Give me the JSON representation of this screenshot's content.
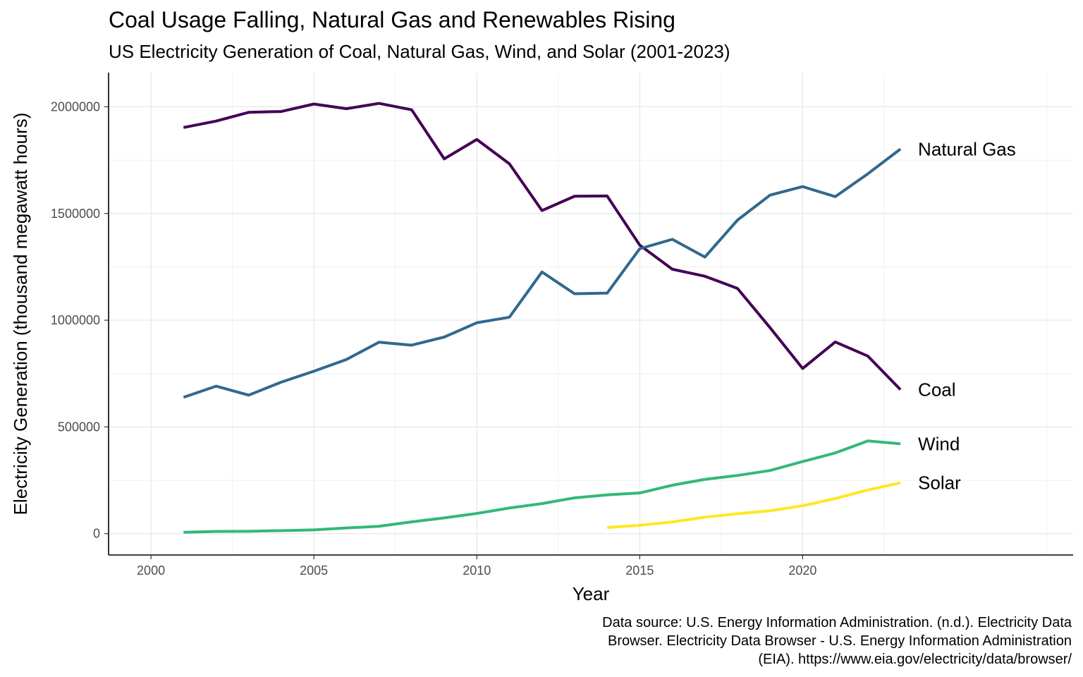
{
  "chart_data": {
    "type": "line",
    "title": "Coal Usage Falling, Natural Gas and Renewables Rising",
    "subtitle": "US Electricity Generation of Coal, Natural Gas, Wind, and Solar (2001-2023)",
    "xlabel": "Year",
    "ylabel": "Electricity Generation (thousand megawatt hours)",
    "xlim": [
      1998.7,
      2028.3
    ],
    "ylim": [
      -100000,
      2160000
    ],
    "x_ticks": [
      2000,
      2005,
      2010,
      2015,
      2020
    ],
    "y_ticks": [
      0,
      500000,
      1000000,
      1500000,
      2000000
    ],
    "grid": true,
    "legend": "direct labels at line ends",
    "series": [
      {
        "name": "Coal",
        "color": "#440154",
        "points": [
          [
            2001,
            1903000
          ],
          [
            2002,
            1933000
          ],
          [
            2003,
            1974000
          ],
          [
            2004,
            1978000
          ],
          [
            2005,
            2013000
          ],
          [
            2006,
            1991000
          ],
          [
            2007,
            2016000
          ],
          [
            2008,
            1986000
          ],
          [
            2009,
            1756000
          ],
          [
            2010,
            1847000
          ],
          [
            2011,
            1733000
          ],
          [
            2012,
            1514000
          ],
          [
            2013,
            1581000
          ],
          [
            2014,
            1582000
          ],
          [
            2015,
            1352000
          ],
          [
            2016,
            1239000
          ],
          [
            2017,
            1206000
          ],
          [
            2018,
            1149000
          ],
          [
            2019,
            965000
          ],
          [
            2020,
            774000
          ],
          [
            2021,
            898000
          ],
          [
            2022,
            832000
          ],
          [
            2023,
            675000
          ]
        ]
      },
      {
        "name": "Natural Gas",
        "color": "#31688e",
        "points": [
          [
            2001,
            639000
          ],
          [
            2002,
            691000
          ],
          [
            2003,
            649000
          ],
          [
            2004,
            710000
          ],
          [
            2005,
            761000
          ],
          [
            2006,
            816000
          ],
          [
            2007,
            897000
          ],
          [
            2008,
            883000
          ],
          [
            2009,
            921000
          ],
          [
            2010,
            988000
          ],
          [
            2011,
            1014000
          ],
          [
            2012,
            1226000
          ],
          [
            2013,
            1124000
          ],
          [
            2014,
            1127000
          ],
          [
            2015,
            1335000
          ],
          [
            2016,
            1379000
          ],
          [
            2017,
            1296000
          ],
          [
            2018,
            1469000
          ],
          [
            2019,
            1586000
          ],
          [
            2020,
            1626000
          ],
          [
            2021,
            1579000
          ],
          [
            2022,
            1686000
          ],
          [
            2023,
            1802000
          ]
        ]
      },
      {
        "name": "Wind",
        "color": "#35b779",
        "points": [
          [
            2001,
            6700
          ],
          [
            2002,
            10400
          ],
          [
            2003,
            11200
          ],
          [
            2004,
            14100
          ],
          [
            2005,
            17800
          ],
          [
            2006,
            26600
          ],
          [
            2007,
            34500
          ],
          [
            2008,
            55400
          ],
          [
            2009,
            73900
          ],
          [
            2010,
            94700
          ],
          [
            2011,
            120200
          ],
          [
            2012,
            140800
          ],
          [
            2013,
            167800
          ],
          [
            2014,
            181700
          ],
          [
            2015,
            190700
          ],
          [
            2016,
            227000
          ],
          [
            2017,
            254300
          ],
          [
            2018,
            272700
          ],
          [
            2019,
            295900
          ],
          [
            2020,
            337900
          ],
          [
            2021,
            378200
          ],
          [
            2022,
            434300
          ],
          [
            2023,
            421000
          ]
        ]
      },
      {
        "name": "Solar",
        "color": "#fde725",
        "points": [
          [
            2014,
            28900
          ],
          [
            2015,
            39000
          ],
          [
            2016,
            54900
          ],
          [
            2017,
            77300
          ],
          [
            2018,
            93400
          ],
          [
            2019,
            107300
          ],
          [
            2020,
            130700
          ],
          [
            2021,
            164400
          ],
          [
            2022,
            204500
          ],
          [
            2023,
            238100
          ]
        ]
      }
    ],
    "caption_lines": [
      "Data source: U.S. Energy Information Administration. (n.d.). Electricity Data",
      "Browser. Electricity Data Browser - U.S. Energy Information Administration",
      "(EIA). https://www.eia.gov/electricity/data/browser/"
    ]
  }
}
